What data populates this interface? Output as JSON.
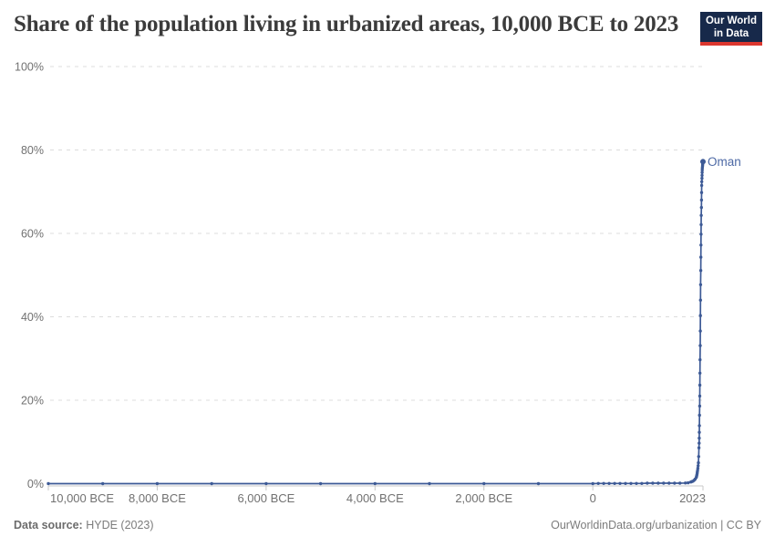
{
  "header": {
    "title": "Share of the population living in urbanized areas, 10,000 BCE to 2023",
    "logo": {
      "line1": "Our World",
      "line2": "in Data"
    }
  },
  "footer": {
    "source_label": "Data source:",
    "source_value": " HYDE (2023)",
    "credit": "OurWorldinData.org/urbanization | CC BY"
  },
  "colors": {
    "line": "#3d5a96",
    "entity_label": "#4d69a5",
    "grid": "#dcdcdc",
    "axis": "#c9c9c9",
    "tick_text": "#717171",
    "title_text": "#3b3b3b",
    "logo_bg": "#17294a",
    "logo_red": "#dc372f"
  },
  "chart_data": {
    "type": "line",
    "title": "Share of the population living in urbanized areas, 10,000 BCE to 2023",
    "xlabel": "",
    "ylabel": "",
    "xlim": [
      -10000,
      2023
    ],
    "ylim": [
      0,
      100
    ],
    "grid": "dashed horizontal gridlines, solid zero axis",
    "legend_position": "end-of-line label",
    "x_ticks": [
      {
        "year": -10000,
        "label": "10,000 BCE"
      },
      {
        "year": -8000,
        "label": "8,000 BCE"
      },
      {
        "year": -6000,
        "label": "6,000 BCE"
      },
      {
        "year": -4000,
        "label": "4,000 BCE"
      },
      {
        "year": -2000,
        "label": "2,000 BCE"
      },
      {
        "year": 0,
        "label": "0"
      },
      {
        "year": 2023,
        "label": "2023"
      }
    ],
    "y_ticks": [
      {
        "value": 0,
        "label": "0%"
      },
      {
        "value": 20,
        "label": "20%"
      },
      {
        "value": 40,
        "label": "40%"
      },
      {
        "value": 60,
        "label": "60%"
      },
      {
        "value": 80,
        "label": "80%"
      },
      {
        "value": 100,
        "label": "100%"
      }
    ],
    "series": [
      {
        "name": "Oman",
        "end_label": "Oman",
        "end_value_pct": 77.2,
        "points": [
          [
            -10000,
            0
          ],
          [
            -9000,
            0
          ],
          [
            -8000,
            0
          ],
          [
            -7000,
            0
          ],
          [
            -6000,
            0
          ],
          [
            -5000,
            0
          ],
          [
            -4000,
            0
          ],
          [
            -3000,
            0
          ],
          [
            -2000,
            0
          ],
          [
            -1000,
            0
          ],
          [
            0,
            0
          ],
          [
            100,
            0.05
          ],
          [
            200,
            0.05
          ],
          [
            300,
            0.05
          ],
          [
            400,
            0.05
          ],
          [
            500,
            0.05
          ],
          [
            600,
            0.05
          ],
          [
            700,
            0.05
          ],
          [
            800,
            0.05
          ],
          [
            900,
            0.05
          ],
          [
            1000,
            0.1
          ],
          [
            1100,
            0.1
          ],
          [
            1200,
            0.1
          ],
          [
            1300,
            0.1
          ],
          [
            1400,
            0.1
          ],
          [
            1500,
            0.1
          ],
          [
            1600,
            0.1
          ],
          [
            1700,
            0.15
          ],
          [
            1750,
            0.2
          ],
          [
            1800,
            0.4
          ],
          [
            1820,
            0.5
          ],
          [
            1840,
            0.6
          ],
          [
            1860,
            0.8
          ],
          [
            1880,
            1.1
          ],
          [
            1900,
            1.5
          ],
          [
            1905,
            1.8
          ],
          [
            1910,
            2.1
          ],
          [
            1915,
            2.4
          ],
          [
            1920,
            2.8
          ],
          [
            1925,
            3.2
          ],
          [
            1930,
            3.7
          ],
          [
            1935,
            4.3
          ],
          [
            1940,
            5.0
          ],
          [
            1945,
            6.5
          ],
          [
            1950,
            8.6
          ],
          [
            1952,
            9.7
          ],
          [
            1954,
            10.9
          ],
          [
            1956,
            12.3
          ],
          [
            1958,
            13.9
          ],
          [
            1960,
            16.4
          ],
          [
            1962,
            18.6
          ],
          [
            1964,
            21.0
          ],
          [
            1966,
            23.6
          ],
          [
            1968,
            26.5
          ],
          [
            1970,
            29.7
          ],
          [
            1972,
            33.1
          ],
          [
            1974,
            36.6
          ],
          [
            1976,
            40.3
          ],
          [
            1978,
            44.0
          ],
          [
            1980,
            47.7
          ],
          [
            1982,
            51.1
          ],
          [
            1984,
            54.3
          ],
          [
            1986,
            57.2
          ],
          [
            1988,
            59.8
          ],
          [
            1990,
            62.1
          ],
          [
            1992,
            64.3
          ],
          [
            1994,
            66.2
          ],
          [
            1996,
            68.0
          ],
          [
            1998,
            69.8
          ],
          [
            2000,
            71.5
          ],
          [
            2002,
            72.4
          ],
          [
            2004,
            73.2
          ],
          [
            2006,
            73.9
          ],
          [
            2008,
            74.6
          ],
          [
            2010,
            75.2
          ],
          [
            2012,
            75.7
          ],
          [
            2014,
            76.1
          ],
          [
            2016,
            76.4
          ],
          [
            2018,
            76.7
          ],
          [
            2020,
            76.9
          ],
          [
            2023,
            77.2
          ]
        ]
      }
    ]
  }
}
